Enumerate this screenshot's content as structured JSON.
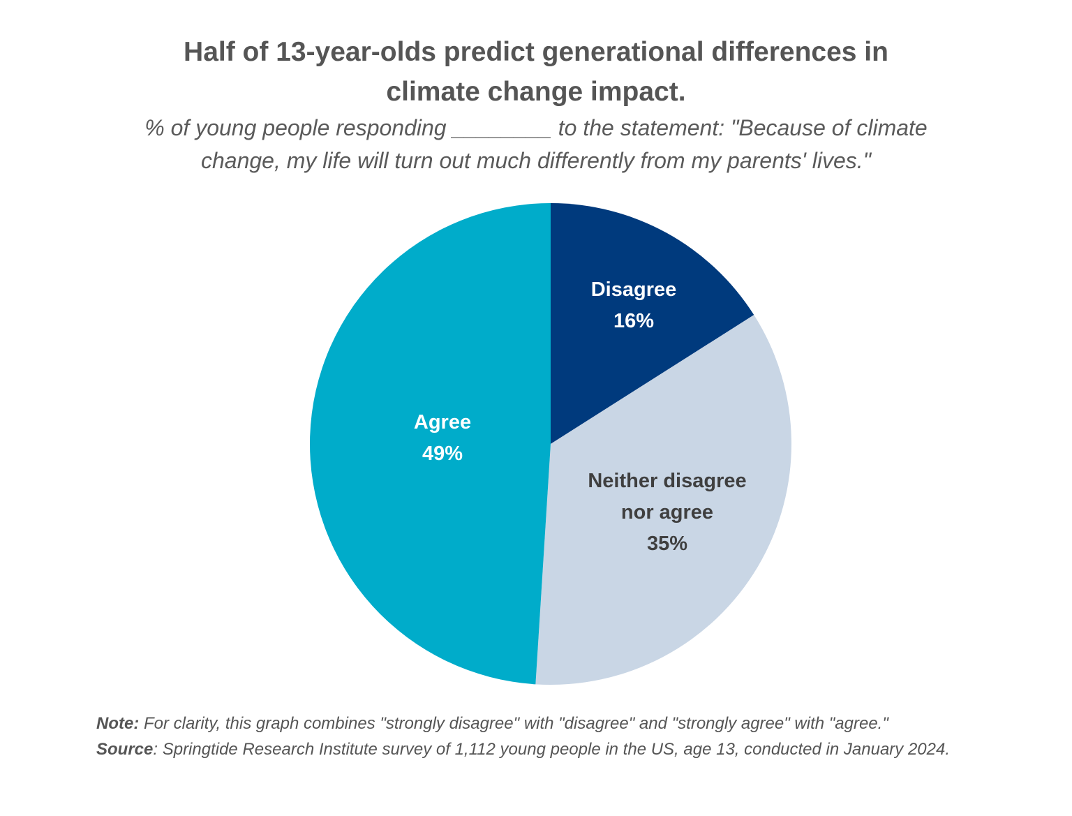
{
  "chart_data": {
    "type": "pie",
    "title_lines": [
      "Half of 13-year-olds predict generational differences in",
      "climate change impact."
    ],
    "subtitle_lines": [
      "% of young people responding ________ to the statement: \"Because of climate",
      "change, my life will turn out much differently from my parents' lives.\""
    ],
    "slices": [
      {
        "label_lines": [
          "Disagree"
        ],
        "percent_label": "16%",
        "value": 16,
        "color": "#003a7d",
        "text_color": "#ffffff"
      },
      {
        "label_lines": [
          "Neither disagree",
          "nor agree"
        ],
        "percent_label": "35%",
        "value": 35,
        "color": "#c9d6e5",
        "text_color": "#3f3f3f"
      },
      {
        "label_lines": [
          "Agree"
        ],
        "percent_label": "49%",
        "value": 49,
        "color": "#00acca",
        "text_color": "#ffffff"
      }
    ],
    "start": "12 o'clock",
    "direction": "clockwise",
    "legend": "none"
  },
  "footer": {
    "note_key": "Note:",
    "note_text": " For clarity, this graph combines \"strongly disagree\" with \"disagree\" and \"strongly agree\" with \"agree.\"",
    "source_key": "Source",
    "source_text": ": Springtide Research Institute survey of 1,112 young people in the US, age 13, conducted in January 2024."
  }
}
